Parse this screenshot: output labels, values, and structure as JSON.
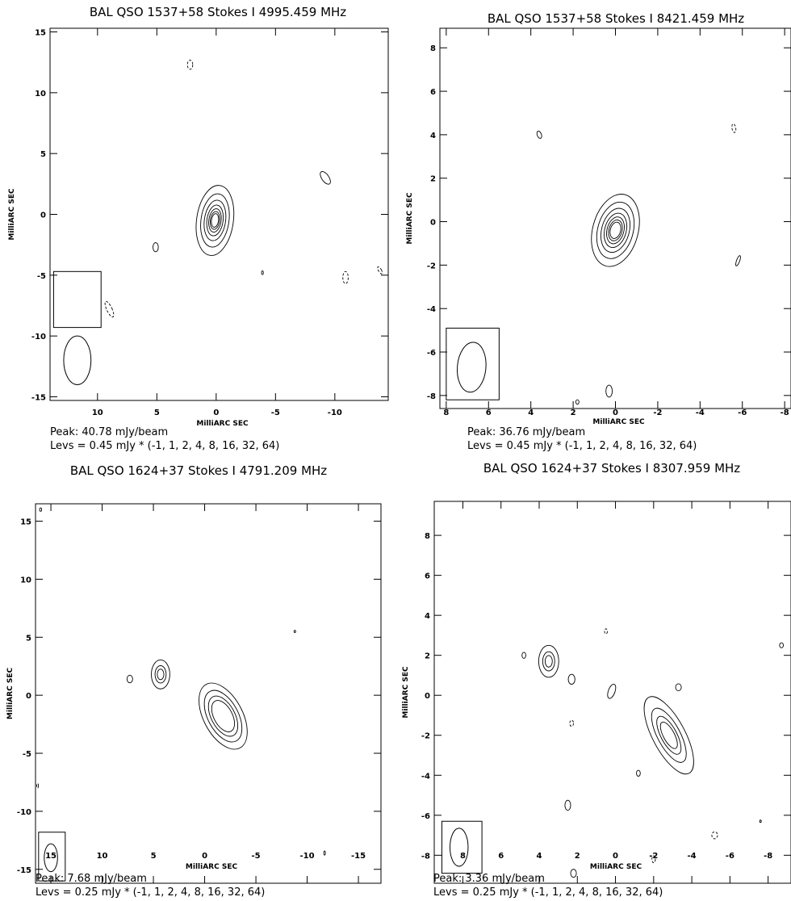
{
  "chart_data": [
    {
      "type": "contour",
      "title": "BAL QSO 1537+58   Stokes I   4995.459 MHz",
      "xlabel": "MilliARC SEC",
      "ylabel": "MilliARC SEC",
      "xlim": [
        14,
        -14.5
      ],
      "ylim": [
        -15.3,
        15.3
      ],
      "xticks": [
        10,
        5,
        0,
        -5,
        -10
      ],
      "yticks": [
        15,
        10,
        5,
        0,
        -5,
        -10,
        -15
      ],
      "peak": "Peak: 40.78 mJy/beam",
      "levels_text": "Levs = 0.45 mJy * (-1, 1, 2, 4, 8, 16, 32, 64)",
      "levels": [
        -1,
        1,
        2,
        4,
        8,
        16,
        32,
        64
      ],
      "beam": {
        "x": 11.7,
        "y": -12,
        "major": 4.0,
        "minor": 2.3,
        "pa": 0,
        "box": [
          13.7,
          -4.7,
          9.7,
          -9.3
        ]
      },
      "source_components": [
        {
          "x": 0.1,
          "y": -0.5,
          "major": 5.8,
          "minor": 3.1,
          "pa": -8,
          "nlevels": 7,
          "shrink": 0.76
        }
      ],
      "blobs": [
        {
          "x": 2.2,
          "y": 12.3,
          "major": 0.75,
          "minor": 0.45,
          "pa": 0,
          "dashed": true
        },
        {
          "x": 5.1,
          "y": -2.7,
          "major": 0.75,
          "minor": 0.45,
          "pa": 0,
          "dashed": false
        },
        {
          "x": -9.2,
          "y": 3.0,
          "major": 1.2,
          "minor": 0.6,
          "pa": 35,
          "dashed": false
        },
        {
          "x": -10.9,
          "y": -5.2,
          "major": 1.0,
          "minor": 0.45,
          "pa": 0,
          "dashed": true
        },
        {
          "x": 9.0,
          "y": -7.8,
          "major": 1.4,
          "minor": 0.45,
          "pa": 25,
          "dashed": true
        },
        {
          "x": -13.8,
          "y": -4.6,
          "major": 0.65,
          "minor": 0.25,
          "pa": 30,
          "dashed": true
        },
        {
          "x": -3.9,
          "y": -4.8,
          "major": 0.3,
          "minor": 0.15,
          "pa": 0,
          "dashed": false
        }
      ]
    },
    {
      "type": "contour",
      "title": "BAL QSO 1537+58   Stokes I   8421.459 MHz",
      "xlabel": "MilliARC SEC",
      "ylabel": "MilliARC SEC",
      "xlim": [
        8.3,
        -8.3
      ],
      "ylim": [
        -8.6,
        8.9
      ],
      "xticks": [
        8,
        6,
        4,
        2,
        0,
        -2,
        -4,
        -6,
        -8
      ],
      "yticks": [
        8,
        6,
        4,
        2,
        0,
        -2,
        -4,
        -6,
        -8
      ],
      "peak": "Peak: 36.76 mJy/beam",
      "levels_text": "Levs = 0.45 mJy * (-1, 1, 2, 4, 8, 16, 32, 64)",
      "levels": [
        -1,
        1,
        2,
        4,
        8,
        16,
        32,
        64
      ],
      "beam": {
        "x": 6.8,
        "y": -6.7,
        "major": 2.3,
        "minor": 1.35,
        "pa": -5,
        "box": [
          8.0,
          -4.9,
          5.5,
          -8.2
        ]
      },
      "source_components": [
        {
          "x": 0.0,
          "y": -0.4,
          "major": 3.4,
          "minor": 2.15,
          "pa": -15,
          "nlevels": 7,
          "shrink": 0.78
        }
      ],
      "blobs": [
        {
          "x": 3.6,
          "y": 4.0,
          "major": 0.35,
          "minor": 0.2,
          "pa": 20,
          "dashed": false
        },
        {
          "x": -5.6,
          "y": 4.3,
          "major": 0.4,
          "minor": 0.18,
          "pa": 10,
          "dashed": true
        },
        {
          "x": -5.8,
          "y": -1.8,
          "major": 0.5,
          "minor": 0.15,
          "pa": -20,
          "dashed": false
        },
        {
          "x": 0.3,
          "y": -7.8,
          "major": 0.55,
          "minor": 0.3,
          "pa": 0,
          "dashed": false
        },
        {
          "x": 1.8,
          "y": -8.3,
          "major": 0.2,
          "minor": 0.15,
          "pa": 0,
          "dashed": false
        }
      ]
    },
    {
      "type": "contour",
      "title": "BAL QSO 1624+37   Stokes I   4791.209 MHz",
      "xlabel": "MilliARC SEC",
      "ylabel": "MilliARC SEC",
      "xlim": [
        16.5,
        -17.2
      ],
      "ylim": [
        -16.2,
        16.5
      ],
      "xticks": [
        15,
        10,
        5,
        0,
        -5,
        -10,
        -15
      ],
      "yticks": [
        15,
        10,
        5,
        0,
        -5,
        -10,
        -15
      ],
      "peak": "Peak: 7.68 mJy/beam",
      "levels_text": "Levs = 0.25 mJy * (-1, 1, 2, 4, 8, 16, 32, 64)",
      "levels": [
        -1,
        1,
        2,
        4,
        8,
        16,
        32,
        64
      ],
      "beam": {
        "x": 15.0,
        "y": -14.0,
        "major": 2.4,
        "minor": 1.3,
        "pa": 0,
        "box": [
          16.2,
          -11.8,
          13.6,
          -16.0
        ]
      },
      "source_components": [
        {
          "x": -1.8,
          "y": -1.8,
          "major": 6.2,
          "minor": 3.8,
          "pa": 28,
          "nlevels": 4,
          "shrink": 0.78
        },
        {
          "x": 4.3,
          "y": 1.8,
          "major": 2.5,
          "minor": 1.8,
          "pa": 0,
          "nlevels": 3,
          "shrink": 0.6
        }
      ],
      "blobs": [
        {
          "x": 7.3,
          "y": 1.4,
          "major": 0.65,
          "minor": 0.55,
          "pa": 0,
          "dashed": false
        },
        {
          "x": 16.0,
          "y": 16.0,
          "major": 0.3,
          "minor": 0.2,
          "pa": 0,
          "dashed": false
        },
        {
          "x": 16.3,
          "y": -7.8,
          "major": 0.4,
          "minor": 0.15,
          "pa": 0,
          "dashed": true
        },
        {
          "x": -11.7,
          "y": -13.6,
          "major": 0.35,
          "minor": 0.15,
          "pa": 0,
          "dashed": false
        },
        {
          "x": -8.8,
          "y": 5.5,
          "major": 0.2,
          "minor": 0.1,
          "pa": 0,
          "dashed": false
        }
      ]
    },
    {
      "type": "contour",
      "title": "BAL QSO 1624+37   Stokes I   8307.959 MHz",
      "xlabel": "MilliARC SEC",
      "ylabel": "MilliARC SEC",
      "xlim": [
        9.5,
        -9.2
      ],
      "ylim": [
        -9.4,
        9.7
      ],
      "xticks": [
        8,
        6,
        4,
        2,
        0,
        -2,
        -4,
        -6,
        -8
      ],
      "yticks": [
        8,
        6,
        4,
        2,
        0,
        -2,
        -4,
        -6,
        -8
      ],
      "peak": "Peak: 3.36 mJy/beam",
      "levels_text": "Levs = 0.25 mJy * (-1, 1, 2, 4, 8, 16, 32, 64)",
      "levels": [
        -1,
        1,
        2,
        4,
        8,
        16,
        32,
        64
      ],
      "beam": {
        "x": 8.2,
        "y": -7.6,
        "major": 1.9,
        "minor": 0.95,
        "pa": 0,
        "box": [
          9.1,
          -6.3,
          7.0,
          -8.9
        ]
      },
      "source_components": [
        {
          "x": -2.8,
          "y": -2.0,
          "major": 4.3,
          "minor": 1.7,
          "pa": 28,
          "nlevels": 4,
          "shrink": 0.7
        },
        {
          "x": 3.5,
          "y": 1.7,
          "major": 1.6,
          "minor": 1.05,
          "pa": 0,
          "nlevels": 3,
          "shrink": 0.6
        }
      ],
      "blobs": [
        {
          "x": 4.8,
          "y": 2.0,
          "major": 0.3,
          "minor": 0.2,
          "pa": 0,
          "dashed": false
        },
        {
          "x": 2.3,
          "y": 0.8,
          "major": 0.5,
          "minor": 0.35,
          "pa": 0,
          "dashed": false
        },
        {
          "x": 0.2,
          "y": 0.2,
          "major": 0.75,
          "minor": 0.35,
          "pa": -20,
          "dashed": false
        },
        {
          "x": -3.3,
          "y": 0.4,
          "major": 0.35,
          "minor": 0.3,
          "pa": 0,
          "dashed": false
        },
        {
          "x": 0.5,
          "y": 3.2,
          "major": 0.25,
          "minor": 0.15,
          "pa": 0,
          "dashed": true
        },
        {
          "x": -1.2,
          "y": -3.9,
          "major": 0.3,
          "minor": 0.2,
          "pa": 0,
          "dashed": false
        },
        {
          "x": 2.3,
          "y": -1.4,
          "major": 0.3,
          "minor": 0.2,
          "pa": 0,
          "dashed": true
        },
        {
          "x": 2.5,
          "y": -5.5,
          "major": 0.5,
          "minor": 0.3,
          "pa": 0,
          "dashed": false
        },
        {
          "x": -5.2,
          "y": -7.0,
          "major": 0.35,
          "minor": 0.3,
          "pa": 0,
          "dashed": true
        },
        {
          "x": -2.0,
          "y": -8.2,
          "major": 0.35,
          "minor": 0.18,
          "pa": 0,
          "dashed": true
        },
        {
          "x": 2.2,
          "y": -8.9,
          "major": 0.4,
          "minor": 0.3,
          "pa": 0,
          "dashed": false
        },
        {
          "x": -8.7,
          "y": 2.5,
          "major": 0.25,
          "minor": 0.2,
          "pa": 0,
          "dashed": false
        },
        {
          "x": -7.6,
          "y": -6.3,
          "major": 0.12,
          "minor": 0.08,
          "pa": 0,
          "dashed": false
        }
      ]
    }
  ]
}
